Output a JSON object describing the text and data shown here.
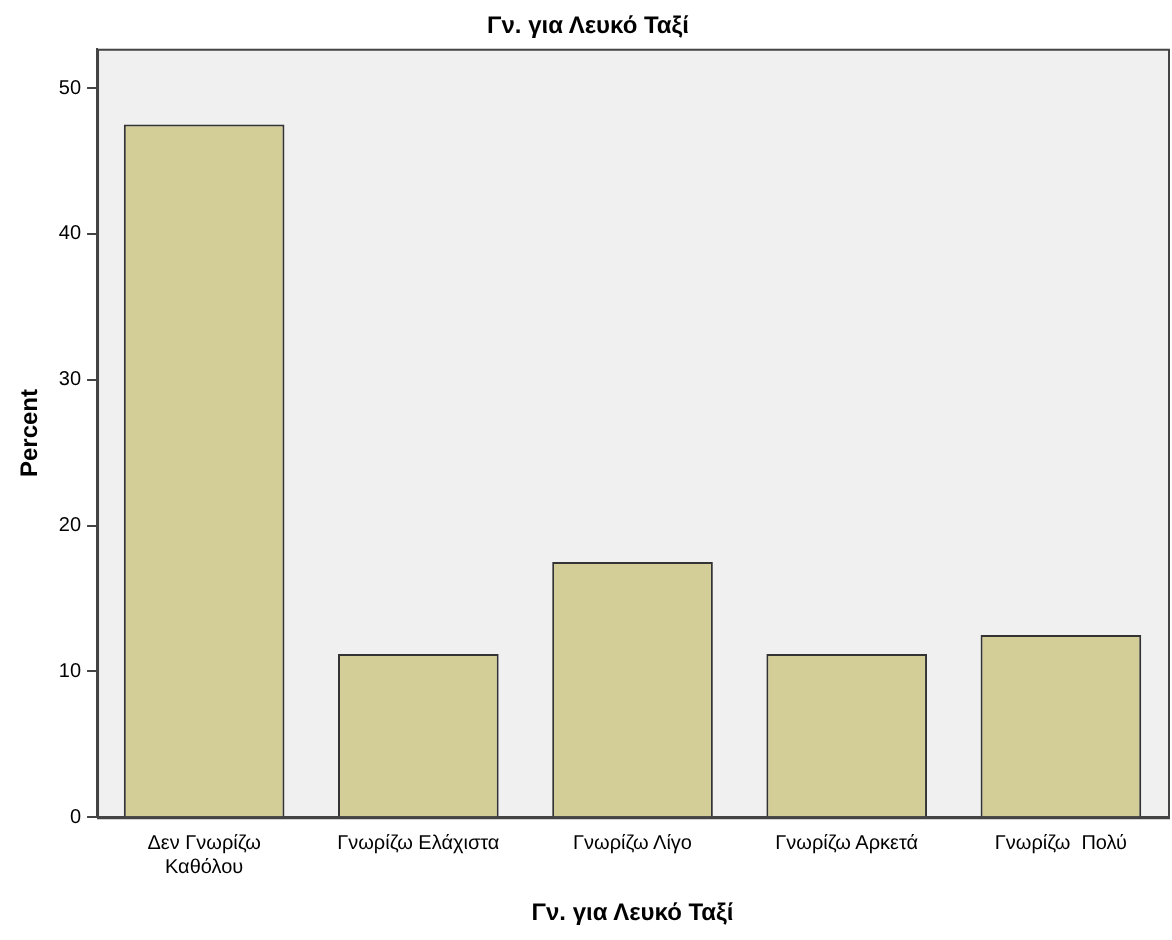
{
  "chart_data": {
    "type": "bar",
    "title": "Γν. για Λευκό Ταξί",
    "xlabel": "Γν. για Λευκό Ταξί",
    "ylabel": "Percent",
    "categories": [
      "Δεν Γνωρίζω Καθόλου",
      "Γνωρίζω Ελάχιστα",
      "Γνωρίζω Λίγο",
      "Γνωρίζω Αρκετά",
      "Γνωρίζω  Πολύ"
    ],
    "values": [
      47.5,
      11.2,
      17.5,
      11.2,
      12.5
    ],
    "color": "#d3ce97",
    "ylim": [
      0,
      52.7
    ],
    "yticks": [
      0,
      10,
      20,
      30,
      40,
      50
    ],
    "grid": false,
    "legend": false
  }
}
